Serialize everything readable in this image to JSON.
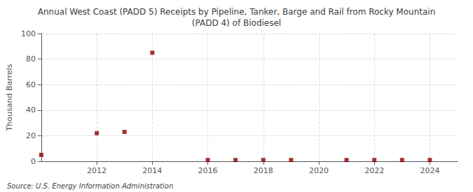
{
  "chart_data": {
    "type": "scatter",
    "title": "Annual West Coast (PADD 5) Receipts by Pipeline, Tanker, Barge and Rail from Rocky Mountain\n(PADD 4) of Biodiesel",
    "ylabel": "Thousand Barrels",
    "annotation": "Source: U.S. Energy Information Administration",
    "x": [
      2010,
      2012,
      2013,
      2014,
      2016,
      2017,
      2018,
      2019,
      2021,
      2022,
      2023,
      2024
    ],
    "values": [
      5,
      22,
      23,
      85,
      1,
      1,
      1,
      1,
      1,
      1,
      1,
      1
    ],
    "color": "#8b0000",
    "marker": "square",
    "xlim": [
      2010,
      2025
    ],
    "xticks": [
      2012,
      2014,
      2016,
      2018,
      2020,
      2022,
      2024
    ],
    "ylim": [
      0,
      100
    ],
    "yticks": [
      0,
      20,
      40,
      60,
      80,
      100
    ],
    "grid": true
  }
}
